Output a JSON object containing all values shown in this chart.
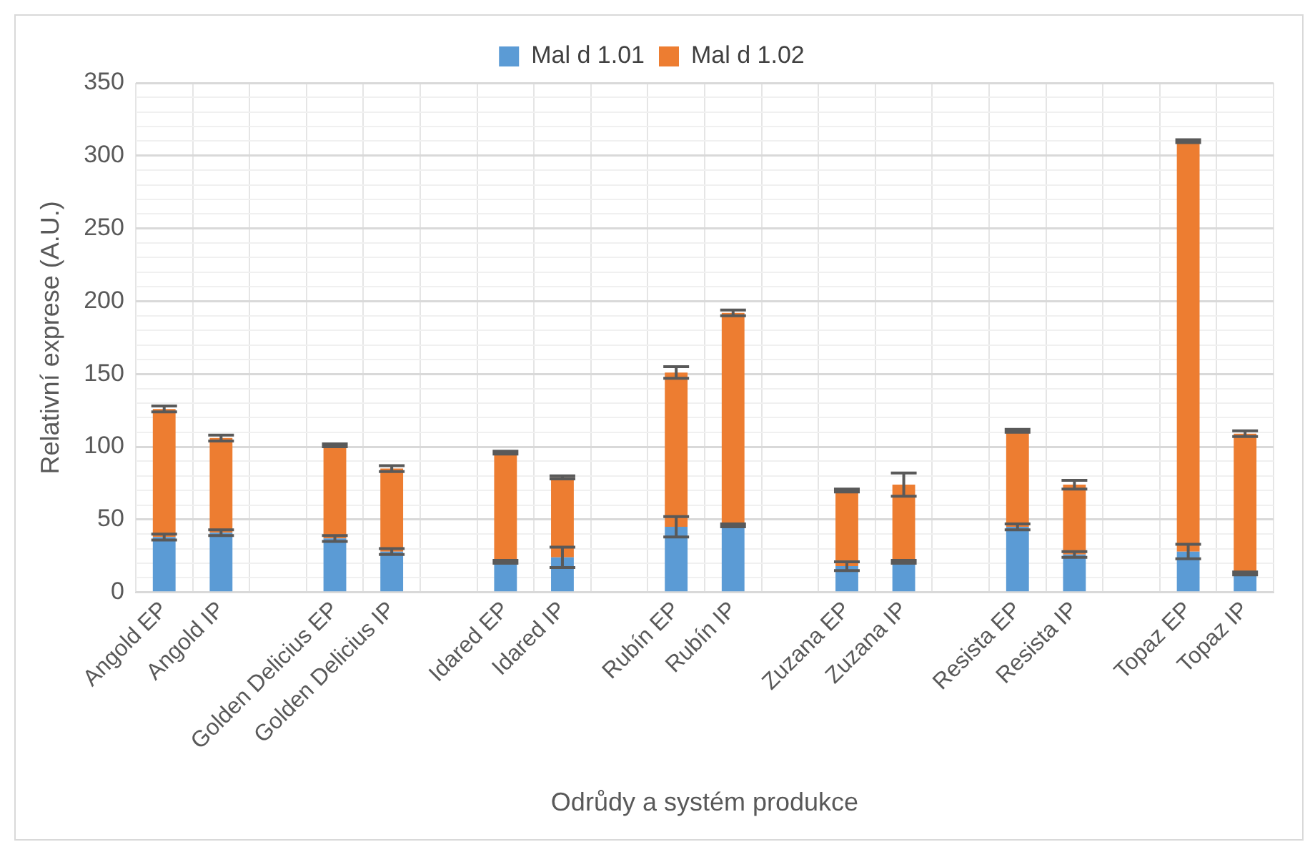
{
  "chart_data": {
    "type": "bar",
    "stacked": true,
    "xlabel": "Odrůdy a systém produkce",
    "ylabel": "Relativní exprese (A.U.)",
    "categories": [
      "Angold EP",
      "Angold IP",
      null,
      "Golden Delicius EP",
      "Golden Delicius IP",
      null,
      "Idared EP",
      "Idared IP",
      null,
      "Rubín EP",
      "Rubín IP",
      null,
      "Zuzana EP",
      "Zuzana IP",
      null,
      "Resista EP",
      "Resista IP",
      null,
      "Topaz EP",
      "Topaz IP"
    ],
    "series": [
      {
        "name": "Mal d 1.01",
        "color": "#5b9bd5",
        "values": [
          38,
          41,
          null,
          37,
          28,
          null,
          21,
          24,
          null,
          45,
          46,
          null,
          18,
          21,
          null,
          45,
          26,
          null,
          28,
          13
        ],
        "errors": [
          2,
          2,
          null,
          2,
          2,
          null,
          1,
          7,
          null,
          7,
          1,
          null,
          3,
          1,
          null,
          2,
          2,
          null,
          5,
          1
        ]
      },
      {
        "name": "Mal d 1.02",
        "color": "#ed7d31",
        "values": [
          88,
          65,
          null,
          64,
          57,
          null,
          75,
          55,
          null,
          106,
          146,
          null,
          52,
          53,
          null,
          66,
          48,
          null,
          282,
          96
        ],
        "errors": [
          2,
          2,
          null,
          1,
          2,
          null,
          1,
          1,
          null,
          4,
          2,
          null,
          1,
          8,
          null,
          1,
          3,
          null,
          1,
          2
        ]
      }
    ],
    "ylim": [
      0,
      350
    ],
    "yticks": [
      0,
      {
        "value": 10,
        "label": null
      },
      {
        "value": 20,
        "label": null
      },
      {
        "value": 30,
        "label": null
      },
      {
        "value": 40,
        "label": null
      },
      50,
      {
        "value": 60,
        "label": null
      },
      {
        "value": 70,
        "label": null
      },
      {
        "value": 80,
        "label": null
      },
      {
        "value": 90,
        "label": null
      },
      100,
      {
        "value": 110,
        "label": null
      },
      {
        "value": 120,
        "label": null
      },
      {
        "value": 130,
        "label": null
      },
      {
        "value": 140,
        "label": null
      },
      150,
      {
        "value": 160,
        "label": null
      },
      {
        "value": 170,
        "label": null
      },
      {
        "value": 180,
        "label": null
      },
      {
        "value": 190,
        "label": null
      },
      200,
      {
        "value": 210,
        "label": null
      },
      {
        "value": 220,
        "label": null
      },
      {
        "value": 230,
        "label": null
      },
      {
        "value": 240,
        "label": null
      },
      250,
      {
        "value": 260,
        "label": null
      },
      {
        "value": 270,
        "label": null
      },
      {
        "value": 280,
        "label": null
      },
      {
        "value": 290,
        "label": null
      },
      300,
      {
        "value": 310,
        "label": null
      },
      {
        "value": 320,
        "label": null
      },
      {
        "value": 330,
        "label": null
      },
      {
        "value": 340,
        "label": null
      },
      350
    ],
    "grid": true,
    "legend": "top"
  }
}
